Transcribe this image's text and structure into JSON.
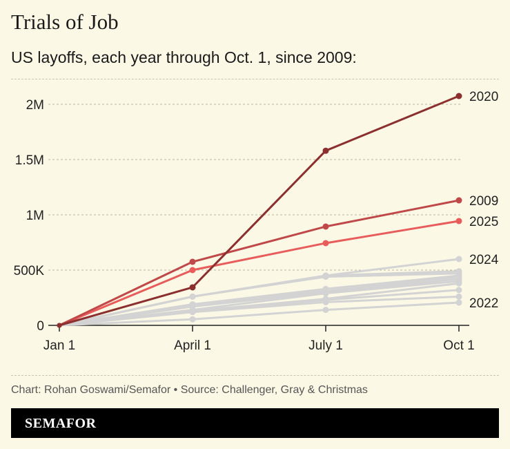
{
  "title": "Trials of Job",
  "subtitle": "US layoffs, each year through Oct. 1, since 2009:",
  "source": "Chart: Rohan Goswami/Semafor • Source: Challenger, Gray & Christmas",
  "brand": "SEMAFOR",
  "chart_data": {
    "type": "line",
    "categories": [
      "Jan 1",
      "April 1",
      "July 1",
      "Oct 1"
    ],
    "ylim": [
      0,
      2200000
    ],
    "yticks": [
      {
        "v": 0,
        "label": "0"
      },
      {
        "v": 500000,
        "label": "500K"
      },
      {
        "v": 1000000,
        "label": "1M"
      },
      {
        "v": 1500000,
        "label": "1.5M"
      },
      {
        "v": 2000000,
        "label": "2M"
      }
    ],
    "grid": true,
    "series": [
      {
        "values": [
          0,
          260000,
          450000,
          490000
        ],
        "color": "#d3d3d3"
      },
      {
        "values": [
          0,
          260000,
          440000,
          470000
        ],
        "color": "#d3d3d3"
      },
      {
        "values": [
          0,
          190000,
          330000,
          450000
        ],
        "color": "#d3d3d3"
      },
      {
        "values": [
          0,
          190000,
          310000,
          440000
        ],
        "color": "#d3d3d3"
      },
      {
        "values": [
          0,
          170000,
          300000,
          420000
        ],
        "color": "#d3d3d3"
      },
      {
        "values": [
          0,
          140000,
          290000,
          400000
        ],
        "color": "#d3d3d3"
      },
      {
        "values": [
          0,
          130000,
          240000,
          380000
        ],
        "color": "#d3d3d3"
      },
      {
        "values": [
          0,
          130000,
          230000,
          320000
        ],
        "color": "#d3d3d3"
      },
      {
        "values": [
          0,
          120000,
          210000,
          260000
        ],
        "color": "#d3d3d3"
      },
      {
        "name": "2022",
        "values": [
          0,
          55000,
          140000,
          206000
        ],
        "color": "#d3d3d3"
      },
      {
        "name": "2024",
        "values": [
          0,
          260000,
          450000,
          600000
        ],
        "color": "#d3d3d3"
      },
      {
        "name": "2025",
        "values": [
          0,
          500000,
          744000,
          944000
        ],
        "color": "#e85c5c"
      },
      {
        "name": "2009",
        "values": [
          0,
          575000,
          894000,
          1131000
        ],
        "color": "#c04848"
      },
      {
        "name": "2020",
        "values": [
          0,
          344000,
          1580000,
          2075000
        ],
        "color": "#8b2f2f"
      }
    ]
  }
}
